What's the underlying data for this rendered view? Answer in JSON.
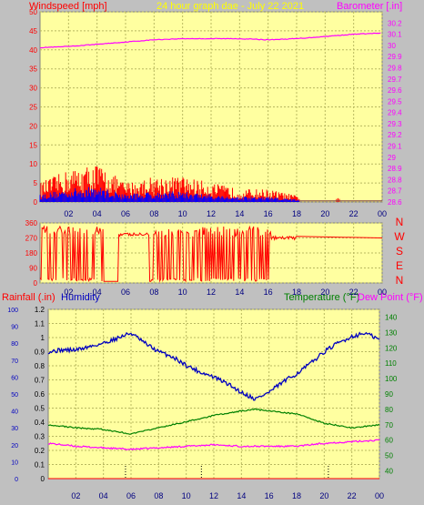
{
  "colors": {
    "background": "#c0c0c0",
    "plot_background": "#ffffa0",
    "grid": "#b8b860",
    "wind": "#ff0000",
    "gust_dark": "#0000ff",
    "barometer": "#ff00ff",
    "humidity": "#0000c0",
    "temperature": "#008000",
    "dew_point": "#ff00ff",
    "rainfall": "#ff0000",
    "title": "#ffff00"
  },
  "header": {
    "wind_label": "Windspeed [mph]",
    "title": "24 hour graph dae - July 22 2021",
    "baro_label": "Barometer [.in]"
  },
  "lower_labels": {
    "rain": "Rainfall (.in)",
    "humidity": "Humidity",
    "temp": "Temperature (°F)",
    "dew": "Dew Point (°F)"
  },
  "chart_data": [
    {
      "type": "line",
      "title": "24 hour graph dae - July 22 2021",
      "x_ticks": [
        "02",
        "04",
        "06",
        "08",
        "10",
        "12",
        "14",
        "16",
        "18",
        "20",
        "22",
        "00"
      ],
      "left_axis": {
        "label": "Windspeed [mph]",
        "ylim": [
          0,
          50
        ],
        "ticks": [
          "0",
          "5",
          "10",
          "15",
          "20",
          "25",
          "30",
          "35",
          "40",
          "45",
          "50"
        ]
      },
      "right_axis": {
        "label": "Barometer [.in]",
        "ylim": [
          28.6,
          30.3
        ],
        "ticks": [
          "28.6",
          "28.7",
          "28.8",
          "28.9",
          "29",
          "29.1",
          "29.2",
          "29.3",
          "29.4",
          "29.5",
          "29.6",
          "29.7",
          "29.8",
          "29.9",
          "30",
          "30.1",
          "30.2"
        ]
      },
      "series": [
        {
          "name": "Barometer [.in]",
          "axis": "right",
          "x": [
            0,
            2,
            4,
            6,
            8,
            10,
            12,
            14,
            16,
            18,
            20,
            22,
            24
          ],
          "values": [
            29.98,
            29.99,
            30.01,
            30.03,
            30.05,
            30.06,
            30.06,
            30.06,
            30.05,
            30.06,
            30.08,
            30.1,
            30.11
          ]
        },
        {
          "name": "Windspeed [mph]",
          "axis": "left",
          "x": [
            0,
            2,
            4,
            6,
            8,
            10,
            12,
            14,
            16,
            18,
            20,
            22,
            24
          ],
          "values": [
            3,
            5,
            6,
            3,
            4,
            4,
            3,
            2,
            2,
            1,
            0,
            0,
            0
          ]
        }
      ]
    },
    {
      "type": "line",
      "x_ticks": [
        "02",
        "04",
        "06",
        "08",
        "10",
        "12",
        "14",
        "16",
        "18",
        "20",
        "22",
        "00"
      ],
      "left_axis": {
        "ticks": [
          "0",
          "90",
          "180",
          "270",
          "360"
        ],
        "ylim": [
          0,
          360
        ]
      },
      "right_axis": {
        "ticks": [
          "N",
          "W",
          "S",
          "E",
          "N"
        ]
      },
      "series": [
        {
          "name": "Wind direction",
          "x": [
            0,
            4,
            6,
            7.8,
            8,
            10,
            12,
            15,
            16,
            18,
            20,
            22,
            24
          ],
          "values": [
            300,
            280,
            10,
            300,
            310,
            200,
            320,
            300,
            260,
            270,
            270,
            270,
            270
          ]
        }
      ]
    },
    {
      "type": "line",
      "x_ticks": [
        "02",
        "04",
        "06",
        "08",
        "10",
        "12",
        "14",
        "16",
        "18",
        "20",
        "22",
        "00"
      ],
      "axes": {
        "humidity": {
          "ticks": [
            "0",
            "10",
            "20",
            "30",
            "40",
            "50",
            "60",
            "70",
            "80",
            "90",
            "100"
          ],
          "ylim": [
            0,
            100
          ]
        },
        "rainfall": {
          "ticks": [
            "0",
            "0.1",
            "0.2",
            "0.3",
            "0.4",
            "0.5",
            "0.6",
            "0.7",
            "0.8",
            "0.9",
            "1",
            "1.1",
            "1.2"
          ],
          "ylim": [
            0,
            1.2
          ]
        },
        "temperature": {
          "ticks": [
            "40",
            "50",
            "60",
            "70",
            "80",
            "90",
            "100",
            "110",
            "120",
            "130",
            "140"
          ],
          "ylim": [
            35,
            145
          ]
        }
      },
      "series": [
        {
          "name": "Humidity",
          "axis": "humidity",
          "x": [
            0,
            1,
            2,
            3,
            4,
            5,
            6,
            7,
            8,
            9,
            10,
            11,
            12,
            13,
            14,
            15,
            16,
            17,
            18,
            19,
            20,
            21,
            22,
            23,
            24
          ],
          "values": [
            75,
            76,
            76,
            78,
            80,
            83,
            86,
            80,
            75,
            72,
            67,
            63,
            60,
            56,
            51,
            47,
            51,
            57,
            62,
            68,
            75,
            80,
            84,
            86,
            82
          ]
        },
        {
          "name": "Temperature (°F)",
          "axis": "temperature",
          "x": [
            0,
            2,
            4,
            6,
            8,
            10,
            12,
            14,
            15,
            16,
            18,
            20,
            22,
            24
          ],
          "values": [
            70,
            68,
            67,
            64,
            68,
            72,
            76,
            79,
            80,
            79,
            77,
            71,
            68,
            70
          ]
        },
        {
          "name": "Dew Point (°F)",
          "axis": "temperature",
          "x": [
            0,
            2,
            4,
            6,
            8,
            10,
            12,
            14,
            16,
            18,
            20,
            22,
            24
          ],
          "values": [
            58,
            56,
            55,
            54,
            55,
            56,
            57,
            56,
            56,
            56,
            58,
            59,
            60
          ]
        },
        {
          "name": "Rainfall (.in)",
          "axis": "rainfall",
          "x": [
            0,
            24
          ],
          "values": [
            0,
            0
          ]
        }
      ]
    }
  ]
}
